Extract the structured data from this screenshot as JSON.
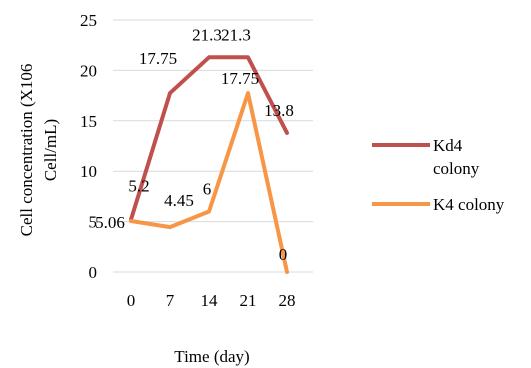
{
  "chart_data": {
    "type": "line",
    "title": "",
    "xlabel": "Time (day)",
    "ylabel": "Cell concentration (X106 Cell/mL)",
    "x": [
      "0",
      "7",
      "14",
      "21",
      "28"
    ],
    "ylim": [
      0,
      25
    ],
    "yticks": [
      0,
      5,
      10,
      15,
      20,
      25
    ],
    "grid": true,
    "legend_position": "right",
    "series": [
      {
        "name": "Kd4 colony",
        "color": "#c0504d",
        "values": [
          5.2,
          17.75,
          21.3,
          21.3,
          13.8
        ],
        "labels": [
          "5.2",
          "17.75",
          "21.3",
          "21.3",
          "13.8"
        ]
      },
      {
        "name": "K4 colony",
        "color": "#f79646",
        "values": [
          5.06,
          4.45,
          6,
          17.75,
          0
        ],
        "labels": [
          "5.06",
          "4.45",
          "6",
          "17.75",
          "0"
        ]
      }
    ]
  }
}
